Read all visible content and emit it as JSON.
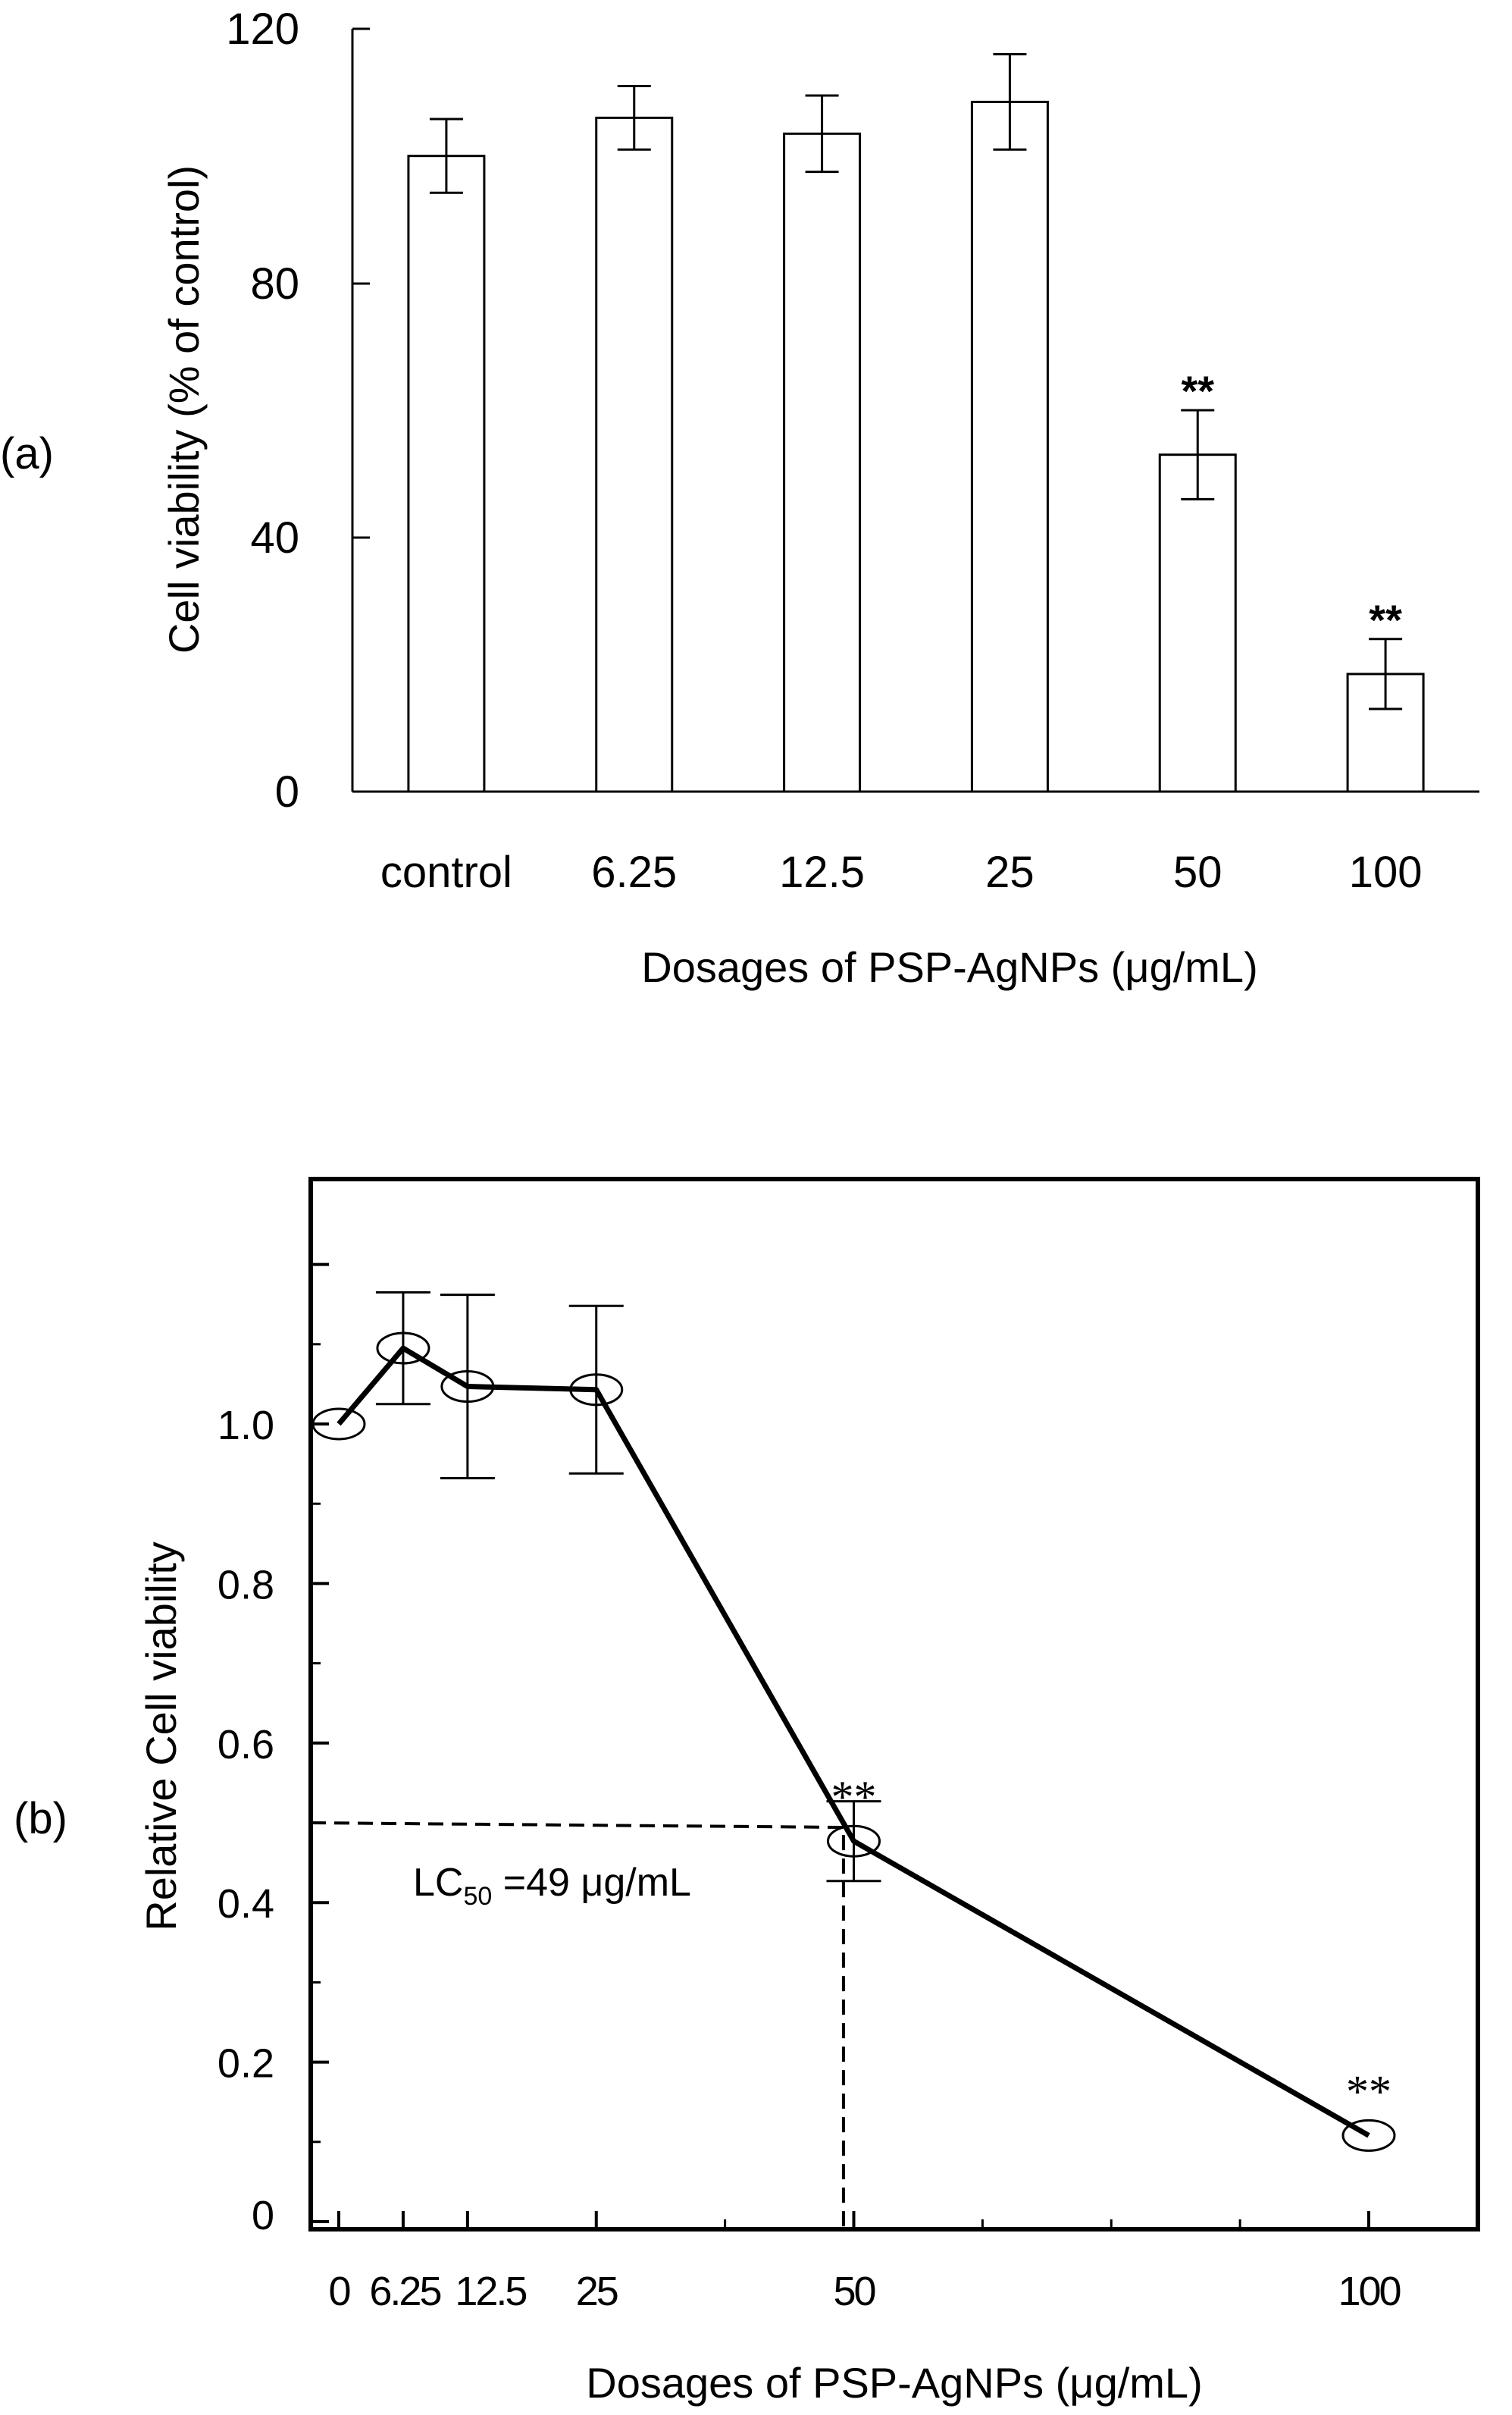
{
  "chart_data": [
    {
      "panel_label": "(a)",
      "type": "bar",
      "categories": [
        "control",
        "6.25",
        "12.5",
        "25",
        "50",
        "100"
      ],
      "values": [
        100,
        106,
        103.5,
        108.5,
        53,
        18.5
      ],
      "errors": [
        5.8,
        5,
        6,
        7.5,
        7,
        5.5
      ],
      "significance": [
        "",
        "",
        "",
        "",
        "**",
        "**"
      ],
      "xlabel": "Dosages of PSP-AgNPs (μg/mL)",
      "ylabel": "Cell viability (% of control)",
      "ylim": [
        0,
        120
      ],
      "yticks": [
        0,
        40,
        80,
        120
      ],
      "grid": false
    },
    {
      "panel_label": "(b)",
      "type": "line",
      "x": [
        0,
        6.25,
        12.5,
        25,
        50,
        100
      ],
      "x_tick_labels": [
        "0",
        "6.25",
        "12.5",
        "25",
        "50",
        "100"
      ],
      "values": [
        1.0,
        1.095,
        1.047,
        1.043,
        0.477,
        0.108
      ],
      "errors": [
        0,
        0.07,
        0.115,
        0.105,
        0.05,
        0
      ],
      "significance": [
        "",
        "",
        "",
        "",
        "**",
        "**"
      ],
      "xlabel": "Dosages of PSP-AgNPs  (μg/mL)",
      "ylabel": "Relative Cell viability",
      "ylim": [
        0,
        1.25
      ],
      "xlim": [
        -0.5,
        105
      ],
      "yticks": [
        "0",
        "0.2",
        "0.4",
        "0.6",
        "0.8",
        "1.0"
      ],
      "annotation": {
        "prefix": "LC",
        "subscript": "50",
        "suffix": " =49 μg/mL",
        "x": 49,
        "y": 0.5
      },
      "grid": false
    }
  ]
}
